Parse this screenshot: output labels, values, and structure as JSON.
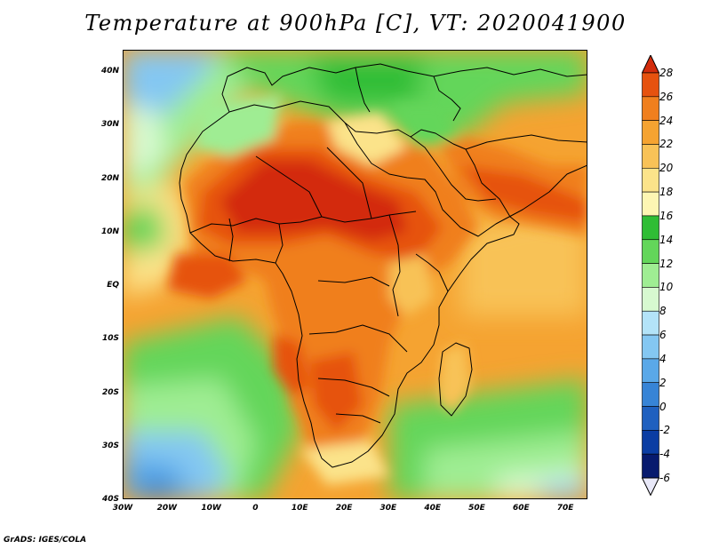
{
  "title": "Temperature at 900hPa [C], VT: 2020041900",
  "credit": "GrADS: IGES/COLA",
  "map": {
    "lon_range": [
      -30,
      75
    ],
    "lat_range": [
      -40,
      44
    ],
    "lat_ticks": [
      "40N",
      "30N",
      "20N",
      "10N",
      "EQ",
      "10S",
      "20S",
      "30S",
      "40S"
    ],
    "lon_ticks": [
      "30W",
      "20W",
      "10W",
      "0",
      "10E",
      "20E",
      "30E",
      "40E",
      "50E",
      "60E",
      "70E"
    ]
  },
  "colorbar": {
    "labels": [
      "28",
      "26",
      "24",
      "22",
      "20",
      "18",
      "16",
      "14",
      "12",
      "10",
      "8",
      "6",
      "4",
      "2",
      "0",
      "-2",
      "-4",
      "-6"
    ],
    "colors": [
      "#d32c0c",
      "#e6520f",
      "#f07f1e",
      "#f5a331",
      "#f8c257",
      "#fbe38a",
      "#fdf6b3",
      "#2fbd35",
      "#63d65a",
      "#9fed93",
      "#d7f9d0",
      "#b3e3f8",
      "#84c7f2",
      "#5aa8e8",
      "#3784d6",
      "#1f60bf",
      "#0b3da3",
      "#071a6e"
    ]
  },
  "chart_data": {
    "type": "heatmap",
    "title": "Temperature at 900hPa [C], VT: 2020041900",
    "x_range": [
      -30,
      75
    ],
    "y_range": [
      -40,
      44
    ],
    "value_range": [
      -6,
      28
    ],
    "levels": [
      -6,
      -4,
      -2,
      0,
      2,
      4,
      6,
      8,
      10,
      12,
      14,
      16,
      18,
      20,
      22,
      24,
      26,
      28
    ],
    "hot_spots": [
      {
        "lon": 0,
        "lat": 18,
        "value": 27
      },
      {
        "lon": 15,
        "lat": 13,
        "value": 27
      },
      {
        "lon": 25,
        "lat": 12,
        "value": 27
      },
      {
        "lon": 52,
        "lat": 22,
        "value": 26
      },
      {
        "lon": 22,
        "lat": -25,
        "value": 26
      }
    ],
    "cold_spots": [
      {
        "lon": -20,
        "lat": -36,
        "value": 2
      },
      {
        "lon": -22,
        "lat": 38,
        "value": 6
      }
    ]
  }
}
